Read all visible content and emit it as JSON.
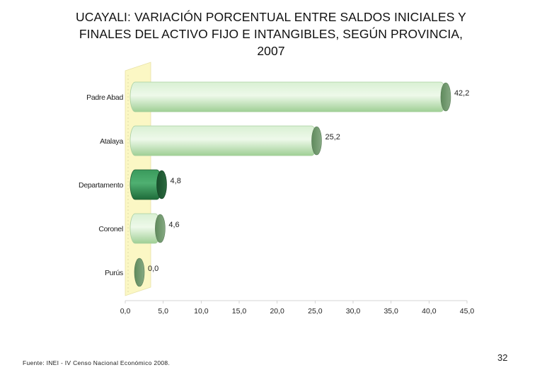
{
  "title": {
    "line1": "UCAYALI: VARIACIÓN PORCENTUAL ENTRE SALDOS INICIALES Y",
    "line2": "FINALES DEL ACTIVO FIJO E INTANGIBLES, SEGÚN PROVINCIA,",
    "line3": "2007"
  },
  "source": "Fuente: INEI - IV Censo Nacional Económico 2008.",
  "page_number": "32",
  "colors": {
    "bar_light": "#b8e0b0",
    "bar_highlight": "#2e8b4f",
    "bar_end": "#6d8f6a",
    "wall": "#fbf7c4"
  },
  "chart_data": {
    "type": "bar",
    "orientation": "horizontal",
    "categories": [
      "Padre Abad",
      "Atalaya",
      "Departamento",
      "Coronel",
      "Purús"
    ],
    "values": [
      42.2,
      25.2,
      4.8,
      4.6,
      0.0
    ],
    "data_labels": [
      "42,2",
      "25,2",
      "4,8",
      "4,6",
      "0,0"
    ],
    "highlight_category": "Departamento",
    "xlim": [
      0,
      45
    ],
    "xticks": [
      "0,0",
      "5,0",
      "10,0",
      "15,0",
      "20,0",
      "25,0",
      "30,0",
      "35,0",
      "40,0",
      "45,0"
    ],
    "xtick_values": [
      0,
      5,
      10,
      15,
      20,
      25,
      30,
      35,
      40,
      45
    ],
    "grid": false,
    "legend": "none"
  }
}
